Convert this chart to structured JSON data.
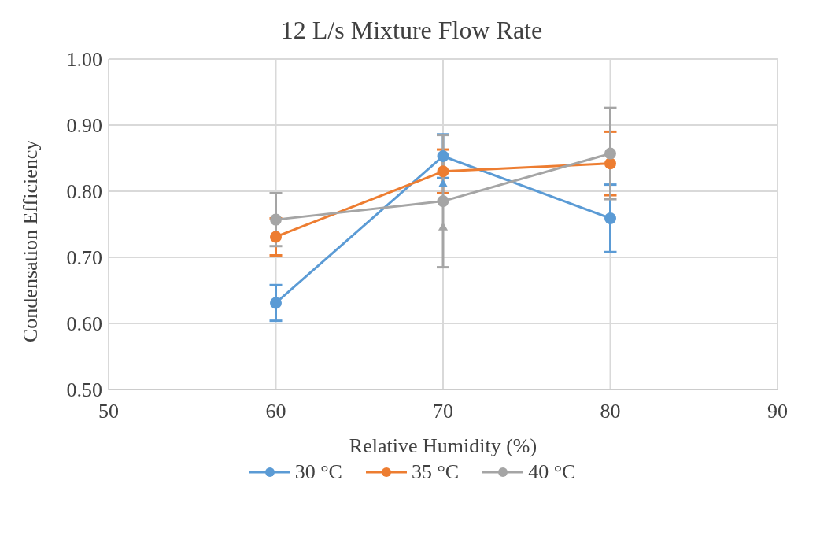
{
  "chart_data": {
    "type": "line",
    "title": "12 L/s Mixture Flow Rate",
    "xlabel": "Relative Humidity (%)",
    "ylabel": "Condensation Efficiency",
    "x": [
      60,
      70,
      80
    ],
    "series": [
      {
        "name": "30 °C",
        "color": "#5b9bd5",
        "values": [
          0.631,
          0.853,
          0.759
        ],
        "errors": [
          0.027,
          0.033,
          0.051
        ]
      },
      {
        "name": "35 °C",
        "color": "#ed7d31",
        "values": [
          0.731,
          0.83,
          0.842
        ],
        "errors": [
          0.028,
          0.033,
          0.048
        ]
      },
      {
        "name": "40 °C",
        "color": "#a5a5a5",
        "values": [
          0.757,
          0.785,
          0.857
        ],
        "errors": [
          0.04,
          0.1,
          0.069
        ]
      },
      {
        "type": "scatter",
        "marker": "triangle",
        "color": "#5b9bd5",
        "x": [
          70
        ],
        "values": [
          0.81
        ]
      },
      {
        "type": "scatter",
        "marker": "triangle",
        "color": "#a5a5a5",
        "x": [
          70
        ],
        "values": [
          0.745
        ]
      }
    ],
    "xlim": [
      50,
      90
    ],
    "xticks": [
      50,
      60,
      70,
      80,
      90
    ],
    "ylim": [
      0.5,
      1.0
    ],
    "yticks": [
      {
        "value": 0.5,
        "label": "0.50"
      },
      {
        "value": 0.6,
        "label": "0.60"
      },
      {
        "value": 0.7,
        "label": "0.70"
      },
      {
        "value": 0.8,
        "label": "0.80"
      },
      {
        "value": 0.9,
        "label": "0.90"
      },
      {
        "value": 1.0,
        "label": "1.00"
      }
    ],
    "grid": true,
    "legend": "bottom",
    "marker": "circle",
    "line_style": "solid"
  }
}
